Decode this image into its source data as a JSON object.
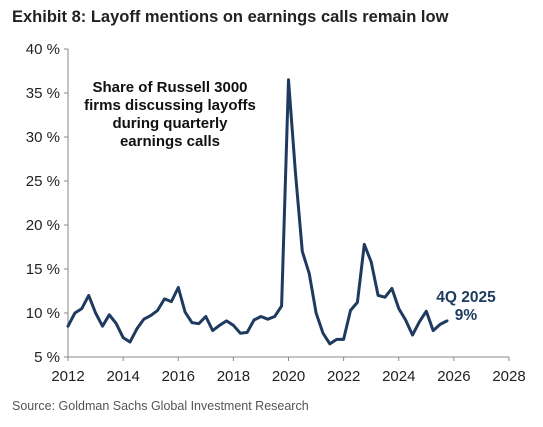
{
  "header": {
    "title": "Exhibit 8: Layoff mentions on earnings calls remain low"
  },
  "footer": {
    "source": "Source: Goldman Sachs Global Investment Research"
  },
  "colors": {
    "line": "#1f3a5f",
    "axis": "#8a8a8a"
  },
  "chart_data": {
    "type": "line",
    "xlim": [
      2012,
      2028
    ],
    "ylim": [
      5,
      40
    ],
    "x_ticks": [
      2012,
      2014,
      2016,
      2018,
      2020,
      2022,
      2024,
      2026,
      2028
    ],
    "x_tick_labels": [
      "2012",
      "2014",
      "2016",
      "2018",
      "2020",
      "2022",
      "2024",
      "2026",
      "2028"
    ],
    "y_ticks": [
      5,
      10,
      15,
      20,
      25,
      30,
      35,
      40
    ],
    "y_tick_labels": [
      "5 %",
      "10 %",
      "15 %",
      "20 %",
      "25 %",
      "30 %",
      "35 %",
      "40 %"
    ],
    "grid": false,
    "annotation_lines": [
      "Share of Russell 3000",
      "firms discussing layoffs",
      "during quarterly",
      "earnings calls"
    ],
    "last_point_label_lines": [
      "4Q 2025",
      "9%"
    ],
    "series": [
      {
        "x": [
          2012.0,
          2012.25,
          2012.5,
          2012.75,
          2013.0,
          2013.25,
          2013.5,
          2013.75,
          2014.0,
          2014.25,
          2014.5,
          2014.75,
          2015.0,
          2015.25,
          2015.5,
          2015.75,
          2016.0,
          2016.25,
          2016.5,
          2016.75,
          2017.0,
          2017.25,
          2017.5,
          2017.75,
          2018.0,
          2018.25,
          2018.5,
          2018.75,
          2019.0,
          2019.25,
          2019.5,
          2019.75,
          2020.0,
          2020.25,
          2020.5,
          2020.75,
          2021.0,
          2021.25,
          2021.5,
          2021.75,
          2022.0,
          2022.25,
          2022.5,
          2022.75,
          2023.0,
          2023.25,
          2023.5,
          2023.75,
          2024.0,
          2024.25,
          2024.5,
          2024.75,
          2025.0,
          2025.25,
          2025.5,
          2025.75
        ],
        "values": [
          8.5,
          10.0,
          10.5,
          12.0,
          10.0,
          8.5,
          9.8,
          8.8,
          7.2,
          6.7,
          8.2,
          9.3,
          9.7,
          10.3,
          11.6,
          11.3,
          12.9,
          10.1,
          8.9,
          8.8,
          9.6,
          8.0,
          8.6,
          9.1,
          8.6,
          7.7,
          7.8,
          9.2,
          9.6,
          9.3,
          9.6,
          10.8,
          36.5,
          26.0,
          17.0,
          14.5,
          10.0,
          7.7,
          6.5,
          7.0,
          7.0,
          10.3,
          11.2,
          17.8,
          15.8,
          12.0,
          11.8,
          12.8,
          10.5,
          9.2,
          7.5,
          9.0,
          10.2,
          8.0,
          8.7,
          9.1
        ]
      }
    ]
  }
}
